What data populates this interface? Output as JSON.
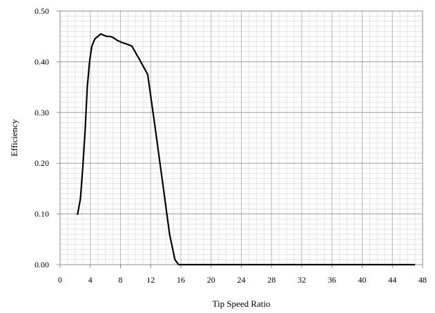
{
  "chart_data": {
    "type": "line",
    "title": "",
    "xlabel": "Tip Speed Ratio",
    "ylabel": "Efficiency",
    "xlim": [
      0,
      48
    ],
    "ylim": [
      0,
      0.5
    ],
    "x_ticks": [
      0,
      4,
      8,
      12,
      16,
      20,
      24,
      28,
      32,
      36,
      40,
      44,
      48
    ],
    "y_ticks": [
      0.0,
      0.1,
      0.2,
      0.3,
      0.4,
      0.5
    ],
    "x_tick_labels": [
      "0",
      "4",
      "8",
      "12",
      "16",
      "20",
      "24",
      "28",
      "32",
      "36",
      "40",
      "44",
      "48"
    ],
    "y_tick_labels": [
      "0.00",
      "0.10",
      "0.20",
      "0.30",
      "0.40",
      "0.50"
    ],
    "grid": {
      "major": true,
      "minor": true
    },
    "legend": "none",
    "line_color": "#000000",
    "series": [
      {
        "x": [
          2.3,
          2.7,
          3.0,
          3.3,
          3.6,
          3.9,
          4.2,
          4.6,
          5.0,
          5.4,
          5.8,
          6.2,
          6.6,
          7.0,
          7.6,
          8.2,
          8.8,
          9.5,
          10.5,
          11.6,
          12.5,
          13.5,
          14.5,
          15.2,
          15.7,
          16.0,
          20,
          30,
          40,
          47
        ],
        "y": [
          0.098,
          0.13,
          0.19,
          0.26,
          0.35,
          0.4,
          0.43,
          0.445,
          0.45,
          0.455,
          0.452,
          0.45,
          0.45,
          0.448,
          0.442,
          0.438,
          0.435,
          0.431,
          0.405,
          0.375,
          0.28,
          0.17,
          0.06,
          0.01,
          0.0,
          0.0,
          0.0,
          0.0,
          0.0,
          0.0
        ]
      }
    ]
  }
}
